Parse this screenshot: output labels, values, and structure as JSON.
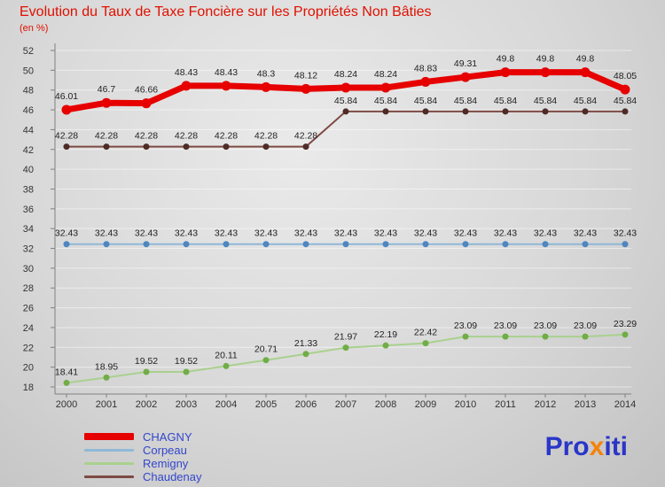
{
  "header": {
    "title": "Evolution du Taux de Taxe Foncière sur les Propriétés Non Bâties",
    "subtitle": "(en %)"
  },
  "legend": {
    "items": [
      {
        "label": "CHAGNY"
      },
      {
        "label": "Corpeau"
      },
      {
        "label": "Remigny"
      },
      {
        "label": "Chaudenay"
      }
    ]
  },
  "logo": {
    "parts": [
      {
        "text": "Pro",
        "color": "#2a36c8"
      },
      {
        "text": "x",
        "color": "#f5820b"
      },
      {
        "text": "iti",
        "color": "#2a36c8"
      }
    ]
  },
  "chart_data": {
    "type": "line",
    "title": "Evolution du Taux de Taxe Foncière sur les Propriétés Non Bâties",
    "ylabel": "en %",
    "xlabel": "",
    "grid": true,
    "legend_position": "bottom-left",
    "ylim": [
      18,
      52
    ],
    "ytick_step": 2,
    "x": [
      2000,
      2001,
      2002,
      2003,
      2004,
      2005,
      2006,
      2007,
      2008,
      2009,
      2010,
      2011,
      2012,
      2013,
      2014
    ],
    "series": [
      {
        "name": "CHAGNY",
        "line_color": "#e60000",
        "dot_color": "#e60000",
        "thick": true,
        "values": [
          46.01,
          46.7,
          46.66,
          48.43,
          48.43,
          48.3,
          48.12,
          48.24,
          48.24,
          48.83,
          49.31,
          49.8,
          49.8,
          49.8,
          48.05
        ]
      },
      {
        "name": "Corpeau",
        "line_color": "#8fb8d8",
        "dot_color": "#4e86c0",
        "thick": false,
        "values": [
          32.43,
          32.43,
          32.43,
          32.43,
          32.43,
          32.43,
          32.43,
          32.43,
          32.43,
          32.43,
          32.43,
          32.43,
          32.43,
          32.43,
          32.43
        ]
      },
      {
        "name": "Remigny",
        "line_color": "#a9d18e",
        "dot_color": "#71ad47",
        "thick": false,
        "values": [
          18.41,
          18.95,
          19.52,
          19.52,
          20.11,
          20.71,
          21.33,
          21.97,
          22.19,
          22.42,
          23.09,
          23.09,
          23.09,
          23.09,
          23.29
        ]
      },
      {
        "name": "Chaudenay",
        "line_color": "#7e4a44",
        "dot_color": "#4e2b26",
        "thick": false,
        "values": [
          42.28,
          42.28,
          42.28,
          42.28,
          42.28,
          42.28,
          42.28,
          45.84,
          45.84,
          45.84,
          45.84,
          45.84,
          45.84,
          45.84,
          45.84
        ]
      }
    ]
  }
}
